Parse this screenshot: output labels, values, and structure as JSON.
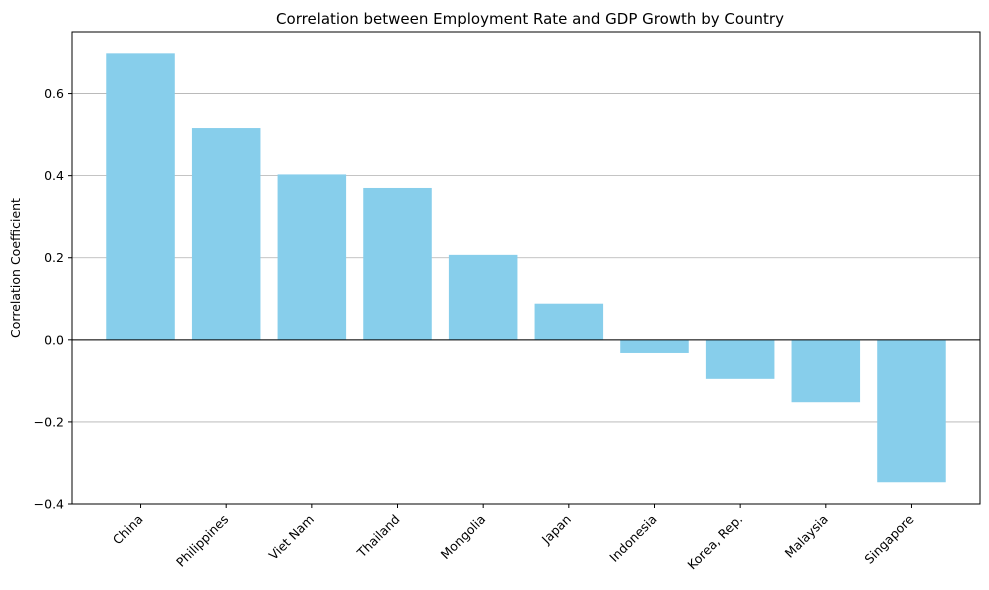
{
  "chart_data": {
    "type": "bar",
    "title": "Correlation between Employment Rate and GDP Growth by Country",
    "xlabel": "",
    "ylabel": "Correlation Coefficient",
    "categories": [
      "China",
      "Philippines",
      "Viet Nam",
      "Thailand",
      "Mongolia",
      "Japan",
      "Indonesia",
      "Korea, Rep.",
      "Malaysia",
      "Singapore"
    ],
    "values": [
      0.698,
      0.516,
      0.403,
      0.37,
      0.207,
      0.088,
      -0.032,
      -0.095,
      -0.152,
      -0.347
    ],
    "ylim": [
      -0.4,
      0.75
    ],
    "yticks": [
      -0.4,
      -0.2,
      0.0,
      0.2,
      0.4,
      0.6
    ],
    "ytick_labels": [
      "−0.4",
      "−0.2",
      "0.0",
      "0.2",
      "0.4",
      "0.6"
    ],
    "bar_color": "#87CEEB",
    "grid": "y-axis",
    "zero_line": true
  }
}
